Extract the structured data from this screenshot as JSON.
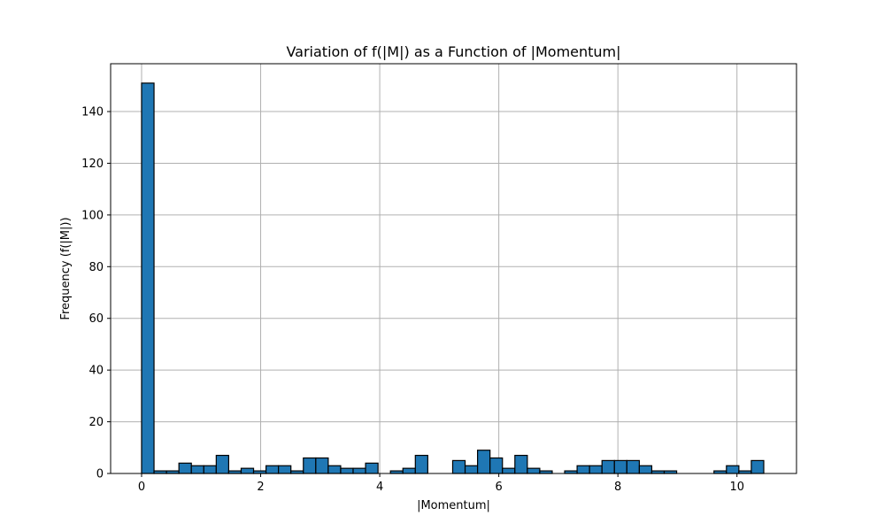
{
  "chart_data": {
    "type": "bar",
    "title": "Variation of f(|M|) as a Function of |Momentum|",
    "xlabel": "|Momentum|",
    "ylabel": "Frequency (f(|M|))",
    "xlim": [
      -0.52,
      11.0
    ],
    "ylim": [
      0,
      158.5
    ],
    "x_ticks": [
      0,
      2,
      4,
      6,
      8,
      10
    ],
    "y_ticks": [
      0,
      20,
      40,
      60,
      80,
      100,
      120,
      140
    ],
    "grid": true,
    "bar_color": "#1f77b4",
    "edge_color": "#000000",
    "bin_width": 0.209,
    "bin_start": 0.0,
    "series": [
      {
        "values": [
          151,
          1,
          1,
          4,
          3,
          3,
          7,
          1,
          2,
          1,
          3,
          3,
          1,
          6,
          6,
          3,
          2,
          2,
          4,
          0,
          1,
          2,
          7,
          0,
          0,
          5,
          3,
          9,
          6,
          2,
          7,
          2,
          1,
          0,
          1,
          3,
          3,
          5,
          5,
          5,
          3,
          1,
          1,
          0,
          0,
          0,
          1,
          3,
          1,
          5
        ]
      }
    ]
  }
}
